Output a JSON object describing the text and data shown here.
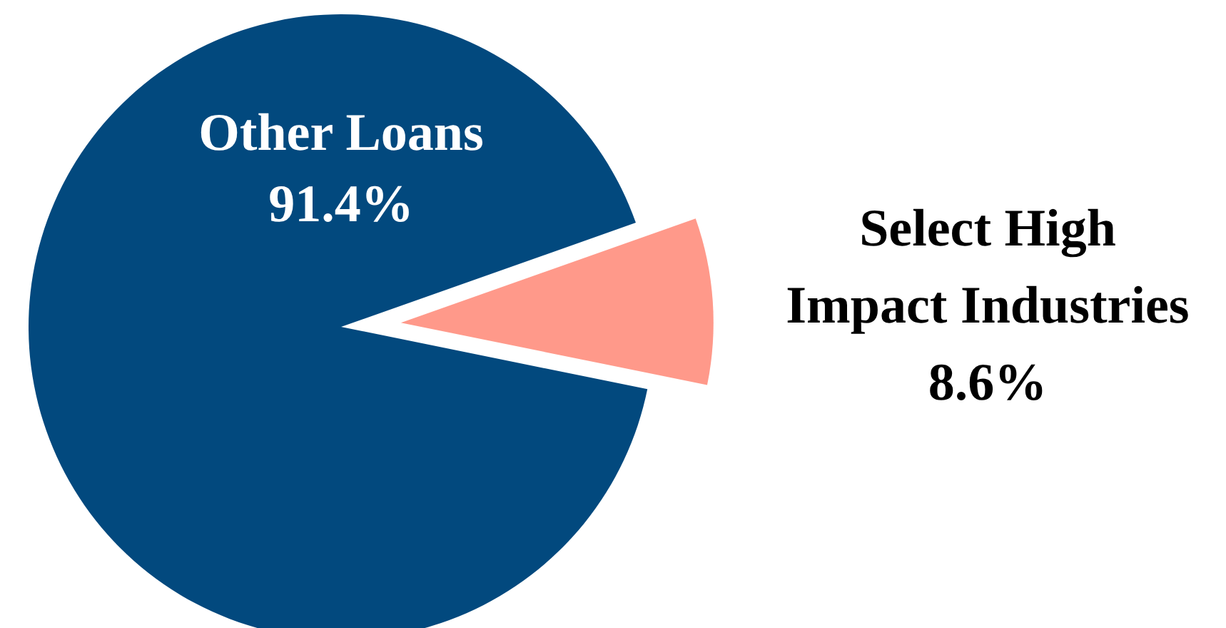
{
  "chart_data": {
    "type": "pie",
    "categories": [
      "Other Loans",
      "Select High Impact Industries"
    ],
    "values": [
      91.4,
      8.6
    ],
    "colors": [
      "#02497e",
      "#ff998a"
    ],
    "value_labels": [
      "91.4%",
      "8.6%"
    ]
  }
}
